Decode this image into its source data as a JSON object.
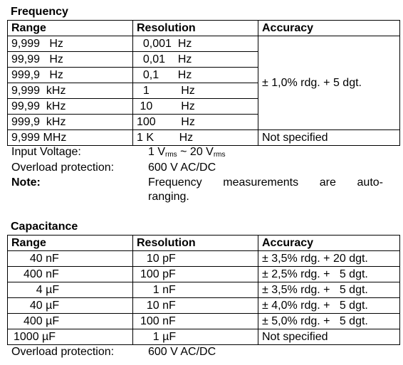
{
  "frequency": {
    "title": "Frequency",
    "headers": [
      "Range",
      "Resolution",
      "Accuracy"
    ],
    "rows": [
      {
        "range": "9,999   Hz",
        "resolution": "  0,001  Hz"
      },
      {
        "range": "99,99   Hz",
        "resolution": "  0,01    Hz"
      },
      {
        "range": "999,9   Hz",
        "resolution": "  0,1      Hz"
      },
      {
        "range": "9,999  kHz",
        "resolution": "  1          Hz"
      },
      {
        "range": "99,99  kHz",
        "resolution": " 10         Hz"
      },
      {
        "range": "999,9  kHz",
        "resolution": "100        Hz"
      },
      {
        "range": "9,999 MHz",
        "resolution": "1 K        Hz"
      }
    ],
    "accuracy_merged": "± 1,0% rdg. + 5 dgt.",
    "accuracy_last": "Not specified",
    "input_voltage_label": "Input Voltage:",
    "input_voltage_value": {
      "a": "1 V",
      "a_sub": "rms",
      "mid": " ~ 20 V",
      "b_sub": "rms"
    },
    "overload_label": "Overload protection:",
    "overload_value": "600 V AC/DC",
    "note_label": "Note:",
    "note_line1_words": [
      "Frequency",
      "measurements",
      "are",
      "auto-"
    ],
    "note_line2": "ranging."
  },
  "capacitance": {
    "title": "Capacitance",
    "headers": [
      "Range",
      "Resolution",
      "Accuracy"
    ],
    "rows": [
      {
        "range": "  40 nF",
        "resolution": "  10 pF",
        "accuracy": "± 3,5% rdg. + 20 dgt."
      },
      {
        "range": "400 nF",
        "resolution": "100 pF",
        "accuracy": "± 2,5% rdg. +   5 dgt."
      },
      {
        "range": "    4 µF",
        "resolution": "    1 nF",
        "accuracy": "± 3,5% rdg. +   5 dgt."
      },
      {
        "range": "  40 µF",
        "resolution": "  10 nF",
        "accuracy": "± 4,0% rdg. +   5 dgt."
      },
      {
        "range": "400 µF",
        "resolution": "100 nF",
        "accuracy": "± 5,0% rdg. +   5 dgt."
      },
      {
        "range": "1000 µF",
        "resolution": "    1 µF",
        "accuracy": "Not specified"
      }
    ],
    "overload_label": "Overload protection:",
    "overload_value": "600 V AC/DC"
  }
}
